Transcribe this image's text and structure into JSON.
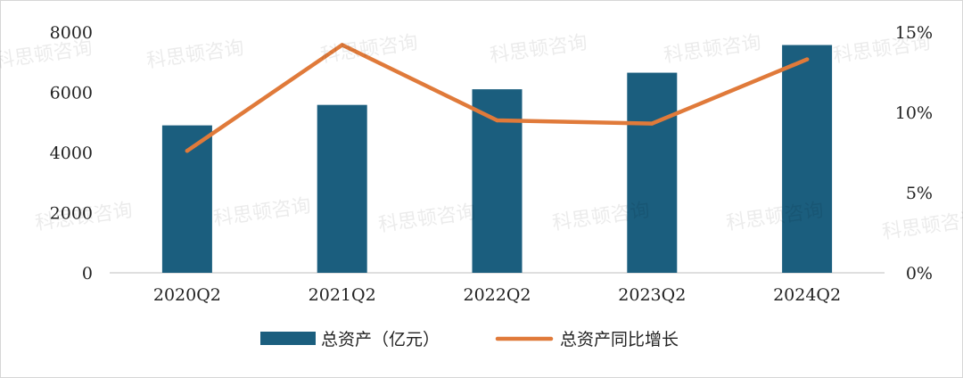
{
  "chart_data": {
    "type": "bar",
    "categories": [
      "2020Q2",
      "2021Q2",
      "2022Q2",
      "2023Q2",
      "2024Q2"
    ],
    "series": [
      {
        "name": "总资产（亿元）",
        "kind": "bar",
        "axis": "left",
        "color": "#1B5E7E",
        "values": [
          4900,
          5580,
          6100,
          6650,
          7570
        ]
      },
      {
        "name": "总资产同比增长",
        "kind": "line",
        "axis": "right",
        "color": "#E07A3A",
        "values": [
          7.6,
          14.2,
          9.5,
          9.3,
          13.3
        ]
      }
    ],
    "y_left": {
      "min": 0,
      "max": 8000,
      "ticks": [
        0,
        2000,
        4000,
        6000,
        8000
      ]
    },
    "y_right": {
      "min": 0,
      "max": 15,
      "ticks": [
        0,
        5,
        10,
        15
      ],
      "tick_labels": [
        "0%",
        "5%",
        "10%",
        "15%"
      ]
    },
    "legend_position": "bottom-center",
    "grid": false
  },
  "watermark": {
    "text": "科思顿咨询"
  }
}
